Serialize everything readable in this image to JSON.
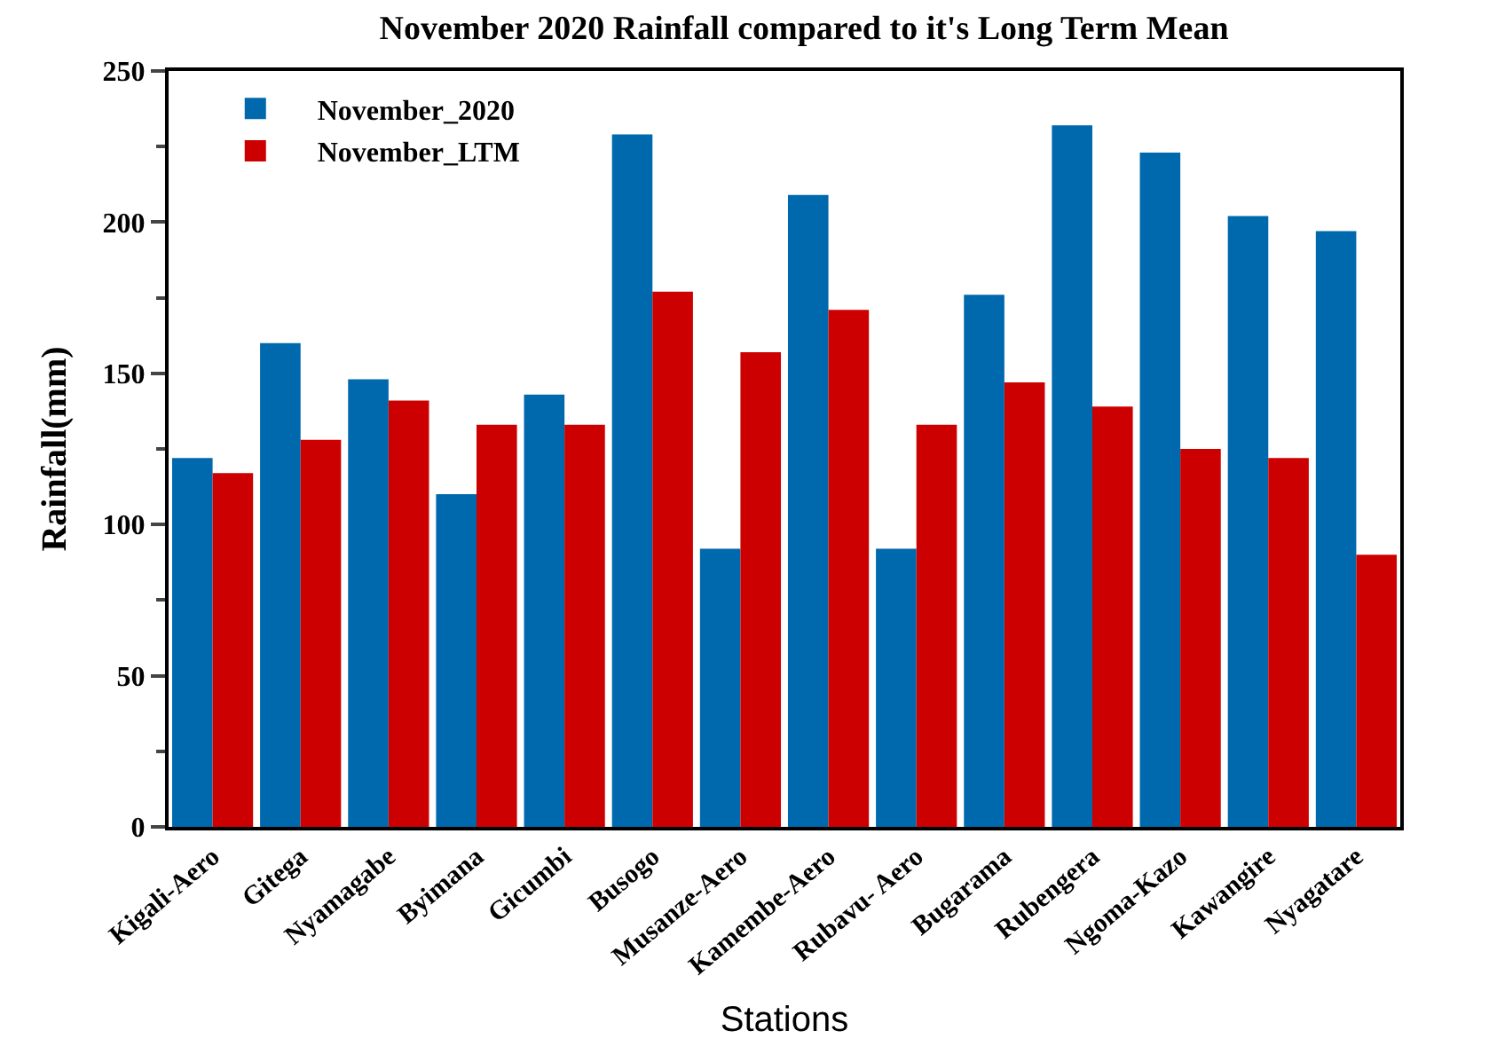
{
  "chart_data": {
    "type": "bar",
    "title": "November 2020 Rainfall compared to it's Long Term Mean",
    "xlabel": "Stations",
    "ylabel": "Rainfall(mm)",
    "categories": [
      "Kigali-Aero",
      "Gitega",
      "Nyamagabe",
      "Byimana",
      "Gicumbi",
      "Busogo",
      "Musanze-Aero",
      "Kamembe-Aero",
      "Rubavu- Aero",
      "Bugarama",
      "Rubengera",
      "Ngoma-Kazo",
      "Kawangire",
      "Nyagatare"
    ],
    "series": [
      {
        "name": "November_2020",
        "color": "#0068ac",
        "values": [
          122,
          160,
          148,
          110,
          143,
          229,
          92,
          209,
          92,
          176,
          232,
          223,
          202,
          197
        ]
      },
      {
        "name": "November_LTM",
        "color": "#cc0000",
        "values": [
          117,
          128,
          141,
          133,
          133,
          177,
          157,
          171,
          133,
          147,
          139,
          125,
          122,
          90
        ]
      }
    ],
    "ylim": [
      0,
      250
    ],
    "yticks": [
      0,
      50,
      100,
      150,
      200,
      250
    ],
    "legend": "top left"
  }
}
